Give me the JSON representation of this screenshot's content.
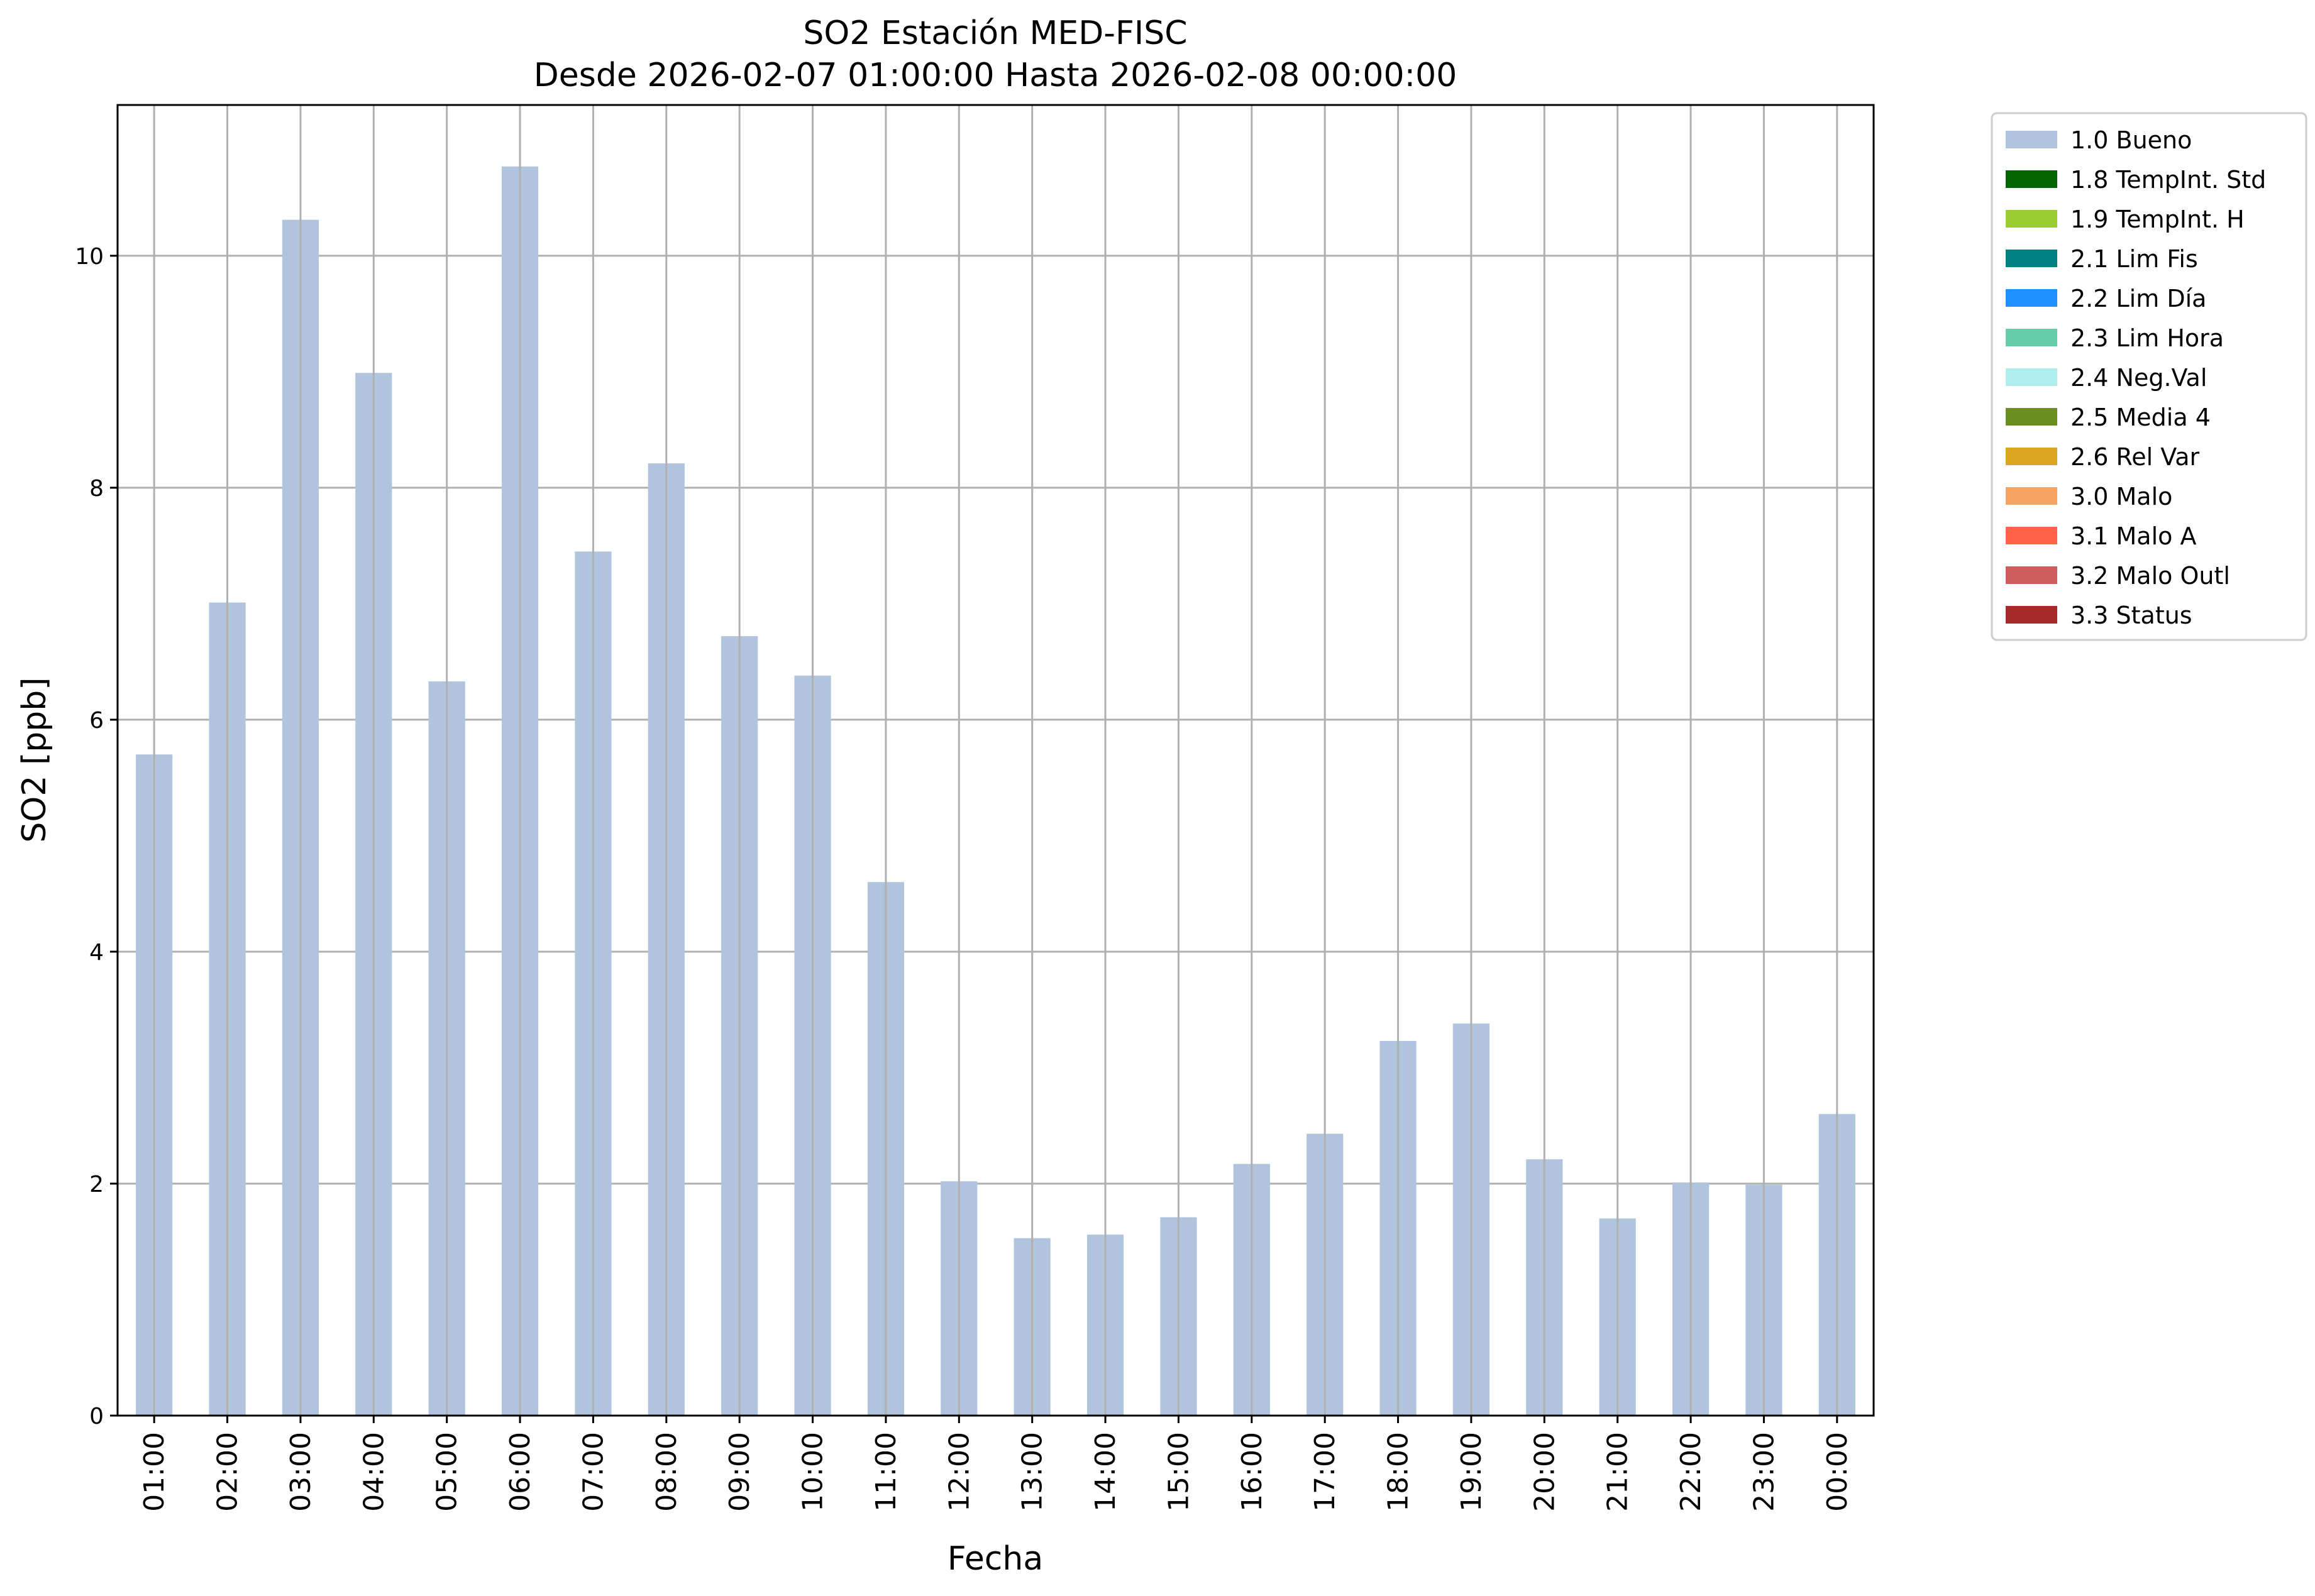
{
  "chart_data": {
    "type": "bar",
    "title": "SO2 Estación MED-FISC",
    "subtitle": "Desde 2026-02-07 01:00:00 Hasta 2026-02-08 00:00:00",
    "xlabel": "Fecha",
    "ylabel": "SO2 [ppb]",
    "ylim": [
      0,
      11.3
    ],
    "yticks": [
      0,
      2,
      4,
      6,
      8,
      10
    ],
    "grid": true,
    "legend_position": "outside top-right",
    "bar_color": "#b0c4de",
    "categories": [
      "01:00",
      "02:00",
      "03:00",
      "04:00",
      "05:00",
      "06:00",
      "07:00",
      "08:00",
      "09:00",
      "10:00",
      "11:00",
      "12:00",
      "13:00",
      "14:00",
      "15:00",
      "16:00",
      "17:00",
      "18:00",
      "19:00",
      "20:00",
      "21:00",
      "22:00",
      "23:00",
      "00:00"
    ],
    "series": [
      {
        "name": "1.0 Bueno",
        "color": "#b0c4de",
        "values": [
          5.7,
          7.01,
          10.31,
          8.99,
          6.33,
          10.77,
          7.45,
          8.21,
          6.72,
          6.38,
          4.6,
          2.02,
          1.53,
          1.56,
          1.71,
          2.17,
          2.43,
          3.23,
          3.38,
          2.21,
          1.7,
          2.01,
          1.99,
          2.6
        ]
      }
    ],
    "legend": [
      {
        "label": "1.0 Bueno",
        "color": "#b0c4de"
      },
      {
        "label": "1.8 TempInt. Std",
        "color": "#006400"
      },
      {
        "label": "1.9 TempInt. H",
        "color": "#9acd32"
      },
      {
        "label": "2.1 Lim Fis",
        "color": "#008080"
      },
      {
        "label": "2.2 Lim Día",
        "color": "#1e90ff"
      },
      {
        "label": "2.3 Lim Hora",
        "color": "#66cdaa"
      },
      {
        "label": "2.4 Neg.Val",
        "color": "#afeeee"
      },
      {
        "label": "2.5 Media 4",
        "color": "#6b8e23"
      },
      {
        "label": "2.6 Rel Var",
        "color": "#daa520"
      },
      {
        "label": "3.0 Malo",
        "color": "#f4a460"
      },
      {
        "label": "3.1 Malo A",
        "color": "#ff6347"
      },
      {
        "label": "3.2 Malo Outl",
        "color": "#cd5c5c"
      },
      {
        "label": "3.3 Status",
        "color": "#a52a2a"
      }
    ]
  }
}
